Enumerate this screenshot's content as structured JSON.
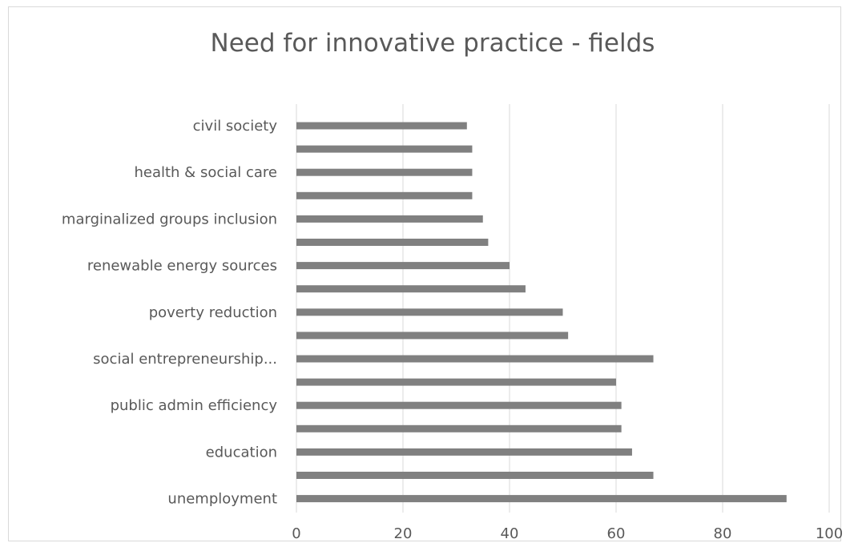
{
  "chart_data": {
    "type": "bar",
    "orientation": "horizontal",
    "title": "Need for innovative practice - fields",
    "xlabel": "",
    "ylabel": "",
    "xlim": [
      0,
      100
    ],
    "x_ticks": [
      "0",
      "20",
      "40",
      "60",
      "80",
      "100"
    ],
    "grid": "vertical",
    "legend": "none",
    "bar_color": "#808080",
    "categories": [
      "civil society",
      "",
      "health & social care",
      "",
      "marginalized groups inclusion",
      "",
      "renewable energy sources",
      "",
      "poverty reduction",
      "",
      "social entrepreneurship...",
      "",
      "public admin efficiency",
      "",
      "education",
      "",
      "unemployment"
    ],
    "values": [
      32,
      33,
      33,
      33,
      35,
      36,
      40,
      43,
      50,
      51,
      67,
      60,
      61,
      61,
      63,
      67,
      92
    ]
  }
}
